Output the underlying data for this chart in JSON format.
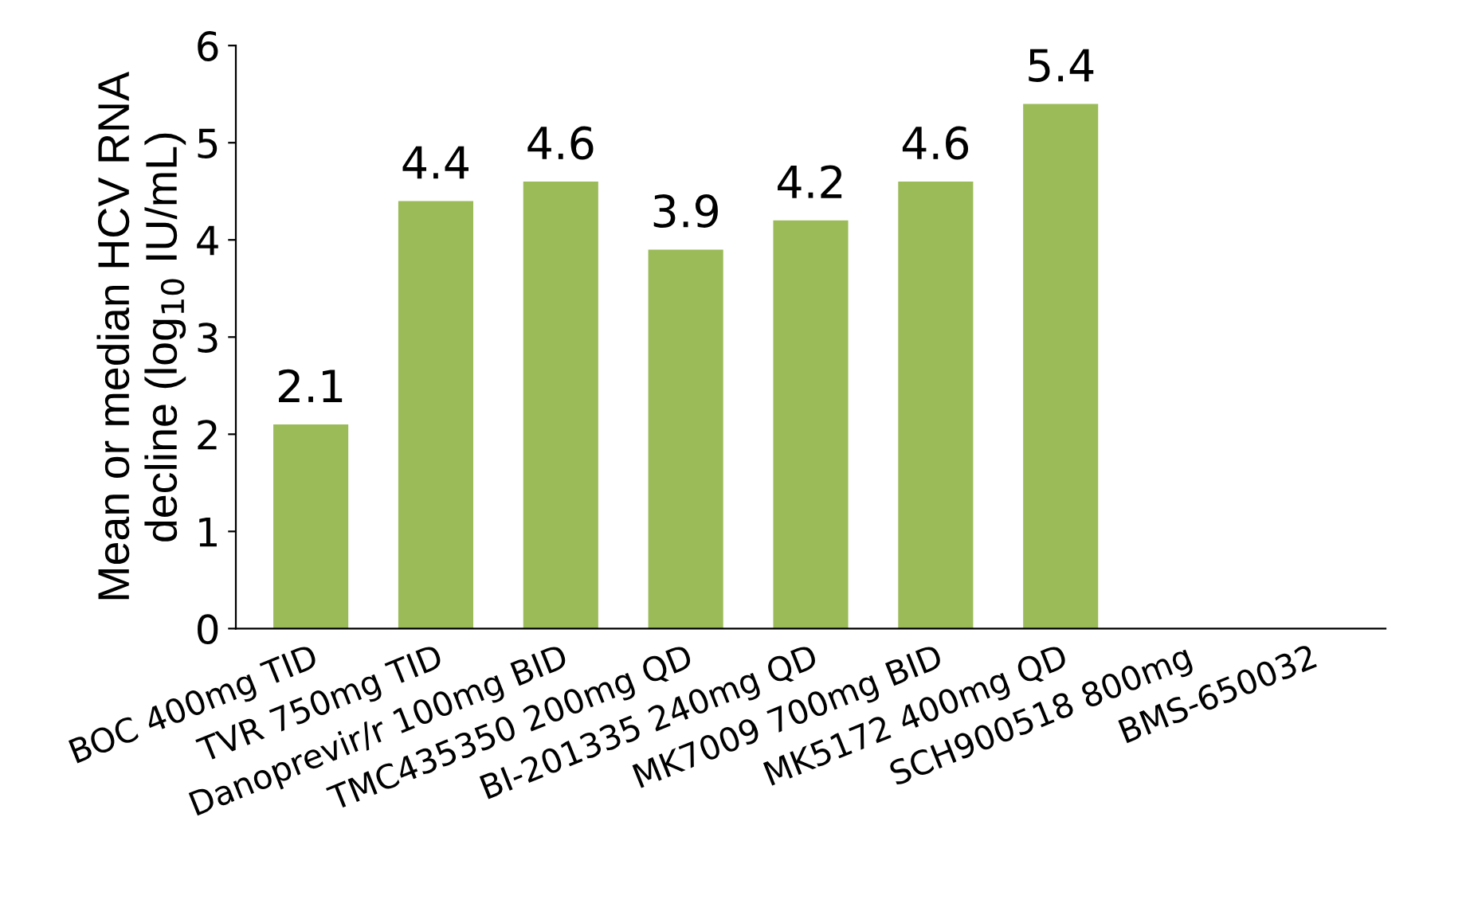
{
  "chart_data": {
    "type": "bar",
    "ylabel": "Mean or median HCV RNA\ndecline (log$_{10}$ IU/mL)",
    "categories": [
      "BOC 400mg TID",
      "TVR 750mg TID",
      "Danoprevir/r 100mg BID",
      "TMC435350 200mg QD",
      "BI-201335 240mg QD",
      "MK7009 700mg BID",
      "MK5172 400mg QD",
      "SCH900518 800mg",
      "BMS-650032"
    ],
    "values": [
      2.1,
      4.4,
      4.6,
      3.9,
      4.2,
      4.6,
      5.4,
      null,
      null
    ],
    "color": "#9bbb59",
    "ylim": [
      0,
      6
    ],
    "yticks": [
      0,
      1,
      2,
      3,
      4,
      5,
      6
    ],
    "grid": false,
    "data_labels": true
  }
}
